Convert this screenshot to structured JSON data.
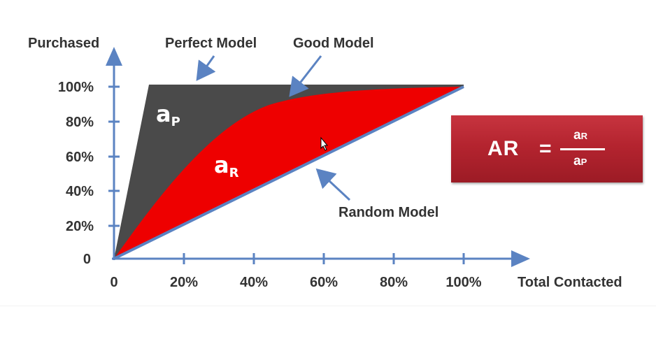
{
  "labels": {
    "y_axis_title": "Purchased",
    "x_axis_title": "Total Contacted",
    "perfect_model": "Perfect Model",
    "good_model": "Good Model",
    "random_model": "Random Model",
    "area_perfect": "a",
    "area_perfect_sub": "P",
    "area_random": "a",
    "area_random_sub": "R"
  },
  "y_ticks": [
    "100%",
    "80%",
    "60%",
    "40%",
    "20%",
    "0"
  ],
  "x_ticks": [
    "0",
    "20%",
    "40%",
    "60%",
    "80%",
    "100%"
  ],
  "formula": {
    "lhs": "AR",
    "eq": "=",
    "num": "a",
    "num_sub": "R",
    "den": "a",
    "den_sub": "P"
  },
  "colors": {
    "axis": "#5b83c2",
    "perfect_area": "#4a4a4a",
    "good_area": "#ee0000",
    "random_line": "#5b83c2",
    "arrow": "#5b83c2",
    "formula_box": "#b4242f"
  }
}
